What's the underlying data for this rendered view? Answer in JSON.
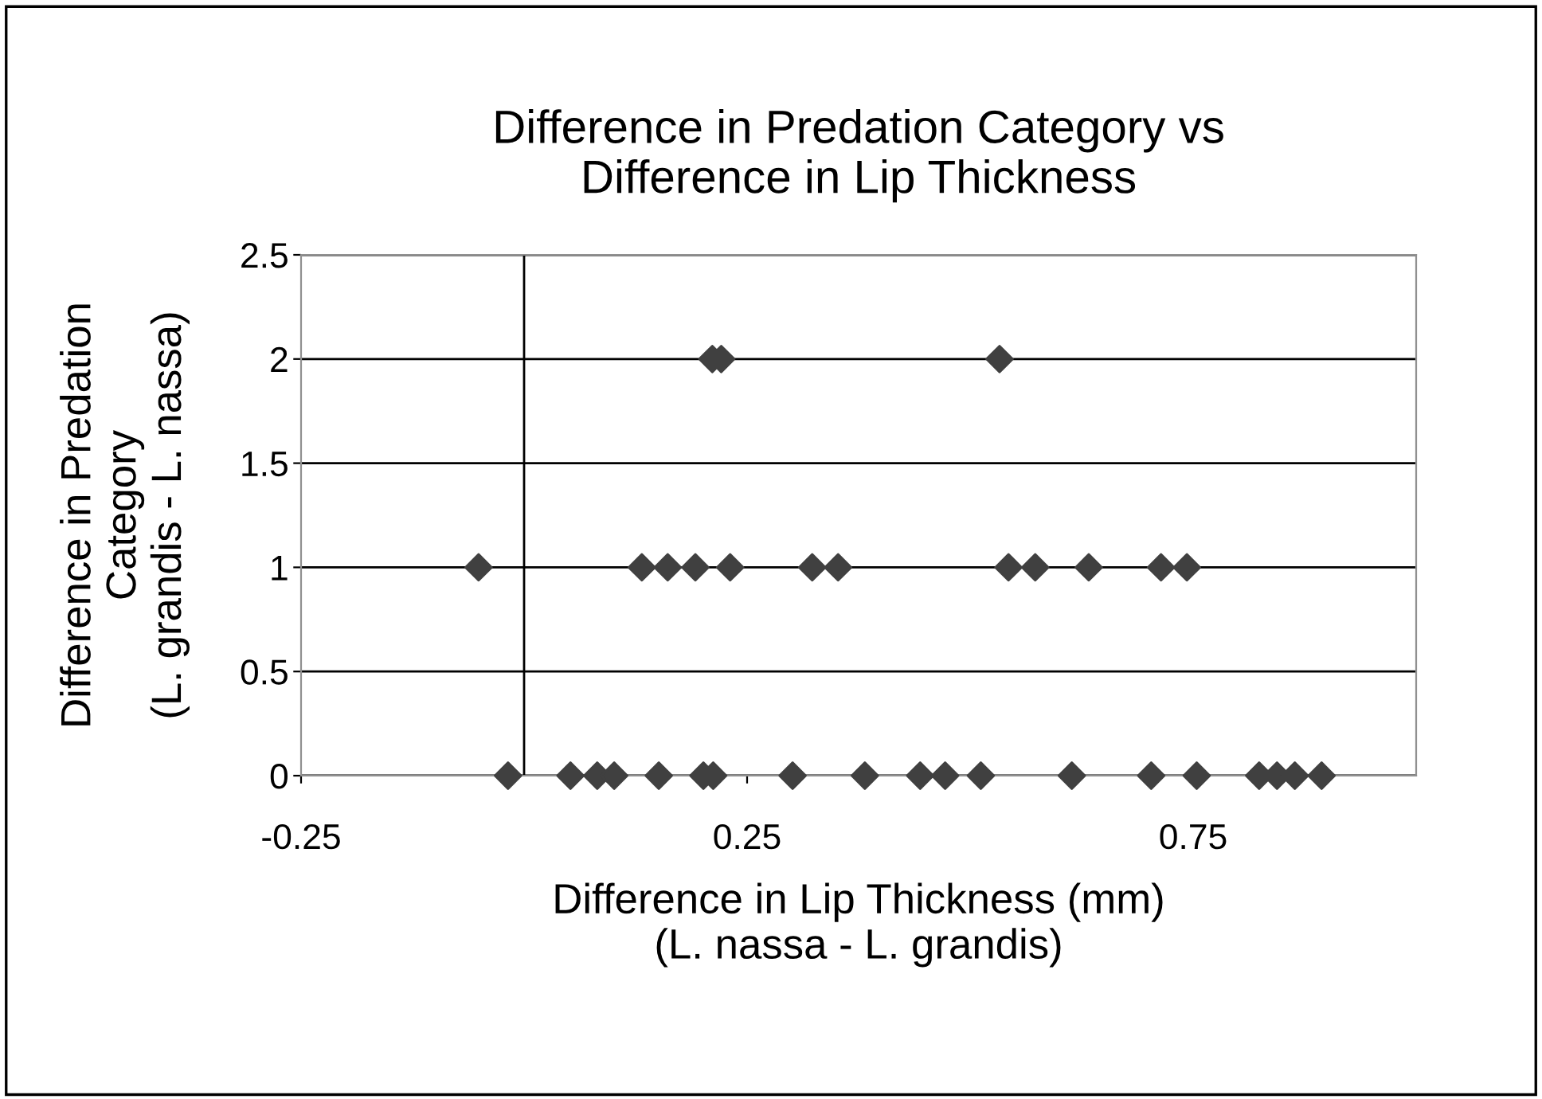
{
  "chart_data": {
    "type": "scatter",
    "title": "Difference in Predation Category vs\nDifference in Lip Thickness",
    "xlabel": "Difference in Lip Thickness (mm)\n(L. nassa - L. grandis)",
    "ylabel": "Difference in Predation\nCategory\n(L. grandis - L. nassa)",
    "series": [
      {
        "color": "#404040",
        "x": [
          0.211,
          0.221,
          0.533,
          -0.051,
          0.132,
          0.161,
          0.192,
          0.231,
          0.323,
          0.352,
          0.543,
          0.573,
          0.633,
          0.714,
          0.743,
          -0.018,
          0.052,
          0.082,
          0.101,
          0.151,
          0.201,
          0.212,
          0.301,
          0.382,
          0.444,
          0.472,
          0.512,
          0.614,
          0.703,
          0.754,
          0.824,
          0.844,
          0.864,
          0.894
        ],
        "values": [
          2,
          2,
          2,
          1,
          1,
          1,
          1,
          1,
          1,
          1,
          1,
          1,
          1,
          1,
          1,
          0,
          0,
          0,
          0,
          0,
          0,
          0,
          0,
          0,
          0,
          0,
          0,
          0,
          0,
          0,
          0,
          0,
          0,
          0
        ]
      }
    ],
    "xlim": [
      -0.25,
      1.0
    ],
    "xticks": [
      -0.25,
      0.25,
      0.75
    ],
    "ylim": [
      0,
      2.5
    ],
    "yticks": [
      0,
      0.5,
      1,
      1.5,
      2,
      2.5
    ],
    "grid": "y",
    "marker": "diamond",
    "legend": false
  }
}
